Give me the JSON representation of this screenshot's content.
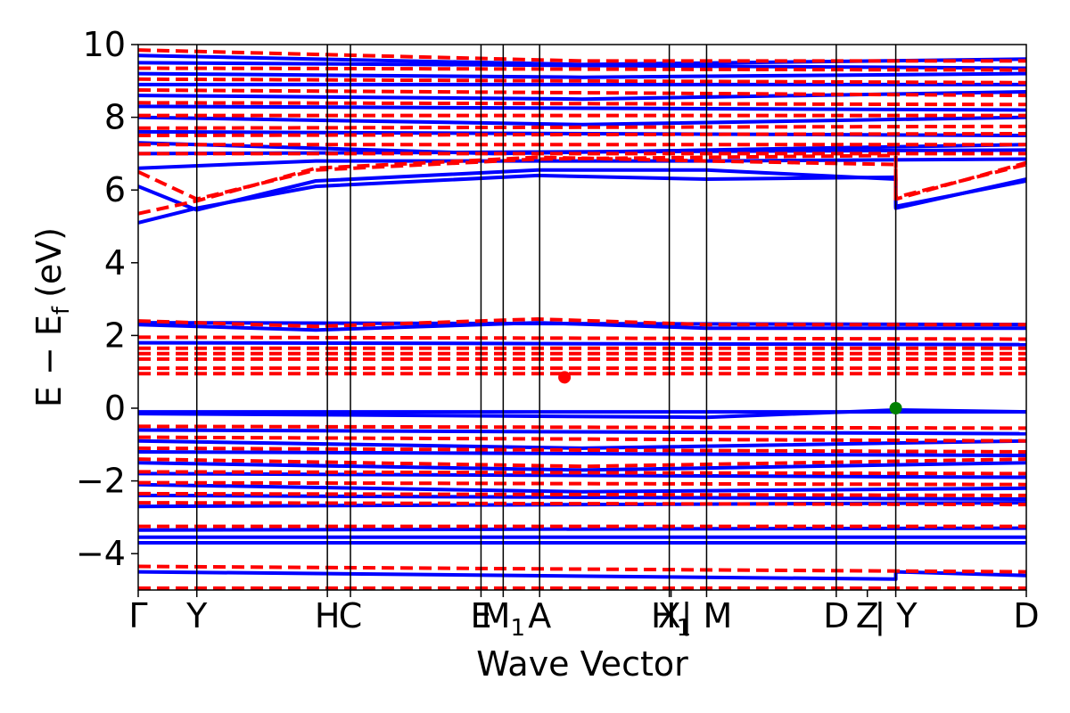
{
  "chart_data": {
    "type": "line",
    "title": "",
    "xlabel": "Wave Vector",
    "ylabel": "E − E",
    "ylabel_subscript": "f",
    "ylabel_unit": "(eV)",
    "ylim": [
      -5,
      10
    ],
    "yticks": [
      -4,
      -2,
      0,
      2,
      4,
      6,
      8,
      10
    ],
    "ytick_labels": [
      "−4",
      "−2",
      "0",
      "2",
      "4",
      "6",
      "8",
      "10"
    ],
    "grid": false,
    "path_x_range": [
      0,
      1
    ],
    "kpoints": [
      {
        "label": "Γ",
        "x": 0.0,
        "line": false
      },
      {
        "label": "Y",
        "x": 0.066,
        "line": true
      },
      {
        "label": "H",
        "x": 0.213,
        "line": true
      },
      {
        "label": "C",
        "x": 0.239,
        "line": true
      },
      {
        "label": "E",
        "x": 0.386,
        "line": true
      },
      {
        "label": "M",
        "sub": "1",
        "x": 0.411,
        "line": true
      },
      {
        "label": "A",
        "x": 0.452,
        "line": true
      },
      {
        "label": "X",
        "x": 0.598,
        "line": true
      },
      {
        "label": "H",
        "sub": "1",
        "x": 0.6,
        "line": false
      },
      {
        "label": "| M",
        "x": 0.64,
        "line": true
      },
      {
        "label": "D",
        "x": 0.786,
        "line": true
      },
      {
        "label": "Z",
        "x": 0.821,
        "line": false
      },
      {
        "label": "| Y",
        "x": 0.853,
        "line": true
      },
      {
        "label": "D",
        "x": 1.0,
        "line": false
      }
    ],
    "path_breaks": [
      0.64,
      0.853
    ],
    "series": [
      {
        "color": "#0000ff",
        "style": "solid",
        "bands": [
          [
            [
              0,
              -0.1
            ],
            [
              1,
              -0.1
            ]
          ],
          [
            [
              0,
              -0.15
            ],
            [
              0.64,
              -0.25
            ],
            [
              0.853,
              -0.05
            ],
            [
              1,
              -0.1
            ]
          ],
          [
            [
              0,
              -0.6
            ],
            [
              1,
              -0.7
            ]
          ],
          [
            [
              0,
              -0.9
            ],
            [
              0.5,
              -1.1
            ],
            [
              1,
              -0.9
            ]
          ],
          [
            [
              0,
              -1.2
            ],
            [
              1,
              -1.3
            ]
          ],
          [
            [
              0,
              -1.5
            ],
            [
              0.5,
              -1.7
            ],
            [
              1,
              -1.5
            ]
          ],
          [
            [
              0,
              -1.8
            ],
            [
              1,
              -1.9
            ]
          ],
          [
            [
              0,
              -2.1
            ],
            [
              0.5,
              -2.3
            ],
            [
              1,
              -2.2
            ]
          ],
          [
            [
              0,
              -2.4
            ],
            [
              1,
              -2.5
            ]
          ],
          [
            [
              0,
              -2.7
            ],
            [
              1,
              -2.6
            ]
          ],
          [
            [
              0,
              -3.35
            ],
            [
              1,
              -3.3
            ]
          ],
          [
            [
              0,
              -3.55
            ],
            [
              1,
              -3.55
            ]
          ],
          [
            [
              0,
              -3.7
            ],
            [
              1,
              -3.7
            ]
          ],
          [
            [
              0,
              -4.5
            ],
            [
              0.853,
              -4.7
            ],
            [
              0.853,
              -4.5
            ],
            [
              1,
              -4.6
            ]
          ],
          [
            [
              0,
              1.8
            ],
            [
              1,
              1.75
            ]
          ],
          [
            [
              0,
              2.3
            ],
            [
              0.2,
              2.15
            ],
            [
              0.45,
              2.35
            ],
            [
              0.64,
              2.2
            ],
            [
              1,
              2.2
            ]
          ],
          [
            [
              0,
              2.35
            ],
            [
              1,
              2.3
            ]
          ],
          [
            [
              0,
              5.1
            ],
            [
              0.066,
              5.5
            ],
            [
              0.2,
              6.1
            ],
            [
              0.45,
              6.4
            ],
            [
              0.64,
              6.3
            ],
            [
              0.853,
              6.35
            ],
            [
              0.853,
              5.5
            ],
            [
              1,
              6.3
            ]
          ],
          [
            [
              0,
              6.1
            ],
            [
              0.066,
              5.45
            ],
            [
              0.2,
              6.25
            ],
            [
              0.45,
              6.55
            ],
            [
              0.64,
              6.55
            ],
            [
              0.853,
              6.3
            ],
            [
              0.853,
              5.55
            ],
            [
              1,
              6.25
            ]
          ],
          [
            [
              0,
              6.6
            ],
            [
              0.2,
              6.8
            ],
            [
              0.64,
              6.8
            ],
            [
              1,
              6.85
            ]
          ],
          [
            [
              0,
              7.0
            ],
            [
              1,
              7.1
            ]
          ],
          [
            [
              0,
              7.3
            ],
            [
              0.4,
              7.0
            ],
            [
              1,
              7.25
            ]
          ],
          [
            [
              0,
              7.6
            ],
            [
              1,
              7.5
            ]
          ],
          [
            [
              0,
              8.0
            ],
            [
              0.5,
              7.8
            ],
            [
              1,
              8.0
            ]
          ],
          [
            [
              0,
              8.3
            ],
            [
              1,
              8.2
            ]
          ],
          [
            [
              0,
              8.6
            ],
            [
              0.5,
              8.5
            ],
            [
              1,
              8.7
            ]
          ],
          [
            [
              0,
              8.9
            ],
            [
              1,
              8.9
            ]
          ],
          [
            [
              0,
              9.2
            ],
            [
              0.5,
              9.1
            ],
            [
              1,
              9.2
            ]
          ],
          [
            [
              0,
              9.5
            ],
            [
              1,
              9.35
            ]
          ],
          [
            [
              0,
              9.7
            ],
            [
              0.5,
              9.45
            ],
            [
              1,
              9.6
            ]
          ]
        ]
      },
      {
        "color": "#ff0000",
        "style": "dashed",
        "bands": [
          [
            [
              0,
              -0.5
            ],
            [
              1,
              -0.55
            ]
          ],
          [
            [
              0,
              -0.8
            ],
            [
              1,
              -0.9
            ]
          ],
          [
            [
              0,
              -1.1
            ],
            [
              1,
              -1.2
            ]
          ],
          [
            [
              0,
              -1.4
            ],
            [
              0.5,
              -1.6
            ],
            [
              1,
              -1.4
            ]
          ],
          [
            [
              0,
              -1.75
            ],
            [
              1,
              -1.8
            ]
          ],
          [
            [
              0,
              -2.05
            ],
            [
              1,
              -2.1
            ]
          ],
          [
            [
              0,
              -2.35
            ],
            [
              1,
              -2.4
            ]
          ],
          [
            [
              0,
              -2.6
            ],
            [
              1,
              -2.65
            ]
          ],
          [
            [
              0,
              -3.25
            ],
            [
              1,
              -3.25
            ]
          ],
          [
            [
              0,
              -4.35
            ],
            [
              1,
              -4.5
            ]
          ],
          [
            [
              0,
              -4.95
            ],
            [
              1,
              -4.95
            ]
          ],
          [
            [
              0,
              0.95
            ],
            [
              1,
              0.95
            ]
          ],
          [
            [
              0,
              1.1
            ],
            [
              1,
              1.1
            ]
          ],
          [
            [
              0,
              1.35
            ],
            [
              1,
              1.35
            ]
          ],
          [
            [
              0,
              1.5
            ],
            [
              1,
              1.5
            ]
          ],
          [
            [
              0,
              1.65
            ],
            [
              1,
              1.65
            ]
          ],
          [
            [
              0,
              1.95
            ],
            [
              1,
              1.9
            ]
          ],
          [
            [
              0,
              2.4
            ],
            [
              0.2,
              2.25
            ],
            [
              0.45,
              2.45
            ],
            [
              0.64,
              2.3
            ],
            [
              1,
              2.3
            ]
          ],
          [
            [
              0,
              5.35
            ],
            [
              0.066,
              5.7
            ],
            [
              0.2,
              6.6
            ],
            [
              0.45,
              6.9
            ],
            [
              0.64,
              6.8
            ],
            [
              0.853,
              6.7
            ],
            [
              0.853,
              5.8
            ],
            [
              1,
              6.7
            ]
          ],
          [
            [
              0,
              6.5
            ],
            [
              0.066,
              5.75
            ],
            [
              0.2,
              6.55
            ],
            [
              0.45,
              6.85
            ],
            [
              0.64,
              6.9
            ],
            [
              0.853,
              6.95
            ],
            [
              0.853,
              5.75
            ],
            [
              1,
              6.75
            ]
          ],
          [
            [
              0,
              7.0
            ],
            [
              1,
              7.0
            ]
          ],
          [
            [
              0,
              7.25
            ],
            [
              1,
              7.25
            ]
          ],
          [
            [
              0,
              7.5
            ],
            [
              1,
              7.55
            ]
          ],
          [
            [
              0,
              7.7
            ],
            [
              1,
              7.75
            ]
          ],
          [
            [
              0,
              8.05
            ],
            [
              1,
              8.05
            ]
          ],
          [
            [
              0,
              8.4
            ],
            [
              1,
              8.35
            ]
          ],
          [
            [
              0,
              8.75
            ],
            [
              1,
              8.6
            ]
          ],
          [
            [
              0,
              9.05
            ],
            [
              1,
              8.95
            ]
          ],
          [
            [
              0,
              9.35
            ],
            [
              1,
              9.3
            ]
          ],
          [
            [
              0,
              9.85
            ],
            [
              0.5,
              9.55
            ],
            [
              1,
              9.55
            ]
          ]
        ]
      }
    ],
    "markers": [
      {
        "x": 0.48,
        "y": 0.85,
        "color": "#ff0000"
      },
      {
        "x": 0.853,
        "y": 0.0,
        "color": "#008000"
      }
    ]
  }
}
